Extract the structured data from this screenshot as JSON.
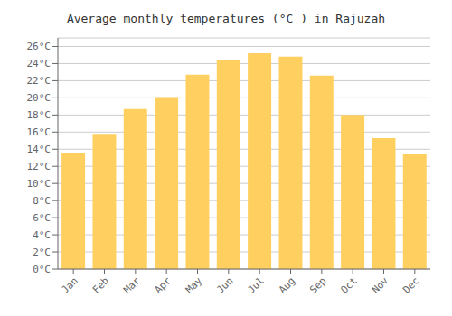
{
  "chart_data": {
    "type": "bar",
    "title": "Average monthly temperatures (°C ) in Rajūzah",
    "categories": [
      "Jan",
      "Feb",
      "Mar",
      "Apr",
      "May",
      "Jun",
      "Jul",
      "Aug",
      "Sep",
      "Oct",
      "Nov",
      "Dec"
    ],
    "values": [
      13.5,
      15.8,
      18.7,
      20.1,
      22.7,
      24.4,
      25.2,
      24.8,
      22.6,
      18.0,
      15.3,
      13.4
    ],
    "color": "#FFD060",
    "ylim": [
      0,
      27
    ],
    "yticks": [
      {
        "value": 0,
        "label": "0°C"
      },
      {
        "value": 2,
        "label": "2°C"
      },
      {
        "value": 4,
        "label": "4°C"
      },
      {
        "value": 6,
        "label": "6°C"
      },
      {
        "value": 8,
        "label": "8°C"
      },
      {
        "value": 10,
        "label": "10°C"
      },
      {
        "value": 12,
        "label": "12°C"
      },
      {
        "value": 14,
        "label": "14°C"
      },
      {
        "value": 16,
        "label": "16°C"
      },
      {
        "value": 18,
        "label": "18°C"
      },
      {
        "value": 20,
        "label": "20°C"
      },
      {
        "value": 22,
        "label": "22°C"
      },
      {
        "value": 24,
        "label": "24°C"
      },
      {
        "value": 26,
        "label": "26°C"
      }
    ],
    "grid": true
  }
}
